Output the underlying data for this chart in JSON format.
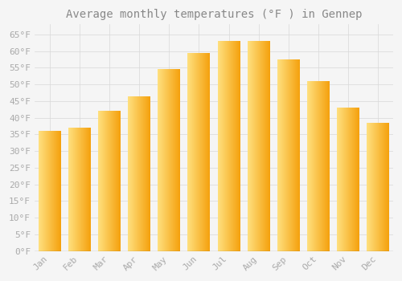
{
  "title": "Average monthly temperatures (°F ) in Gennep",
  "months": [
    "Jan",
    "Feb",
    "Mar",
    "Apr",
    "May",
    "Jun",
    "Jul",
    "Aug",
    "Sep",
    "Oct",
    "Nov",
    "Dec"
  ],
  "values": [
    36,
    37,
    42,
    46.5,
    54.5,
    59.5,
    63,
    63,
    57.5,
    51,
    43,
    38.5
  ],
  "bar_color_left": "#FFE080",
  "bar_color_right": "#F5A000",
  "ylim": [
    0,
    68
  ],
  "yticks": [
    0,
    5,
    10,
    15,
    20,
    25,
    30,
    35,
    40,
    45,
    50,
    55,
    60,
    65
  ],
  "background_color": "#F5F5F5",
  "grid_color": "#D8D8D8",
  "title_fontsize": 10,
  "tick_fontsize": 8,
  "font_color": "#AAAAAA",
  "title_color": "#888888",
  "bar_width": 0.75
}
